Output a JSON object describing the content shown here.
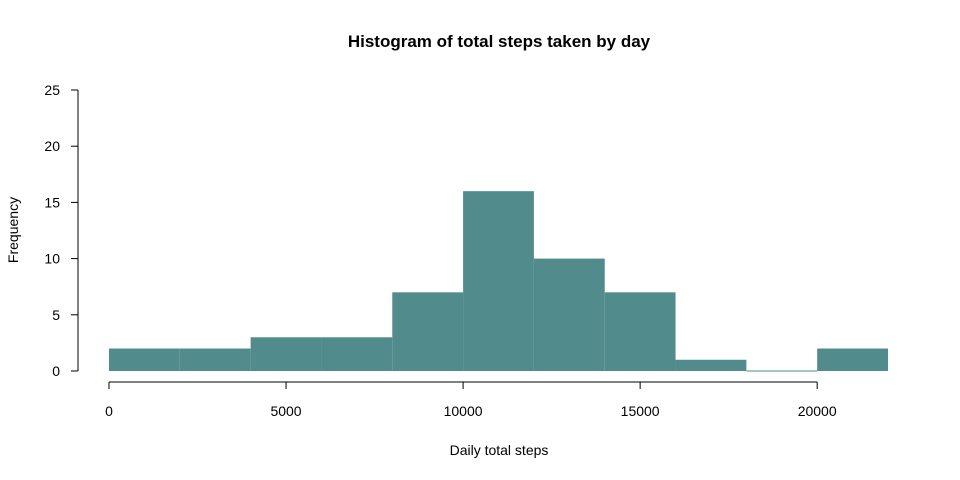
{
  "chart_data": {
    "type": "bar",
    "title": "Histogram of total steps taken by day",
    "xlabel": "Daily total steps",
    "ylabel": "Frequency",
    "bin_width": 2000,
    "bins": [
      {
        "start": 0,
        "end": 2000,
        "count": 2
      },
      {
        "start": 2000,
        "end": 4000,
        "count": 2
      },
      {
        "start": 4000,
        "end": 6000,
        "count": 3
      },
      {
        "start": 6000,
        "end": 8000,
        "count": 3
      },
      {
        "start": 8000,
        "end": 10000,
        "count": 7
      },
      {
        "start": 10000,
        "end": 12000,
        "count": 16
      },
      {
        "start": 12000,
        "end": 14000,
        "count": 10
      },
      {
        "start": 14000,
        "end": 16000,
        "count": 7
      },
      {
        "start": 16000,
        "end": 18000,
        "count": 1
      },
      {
        "start": 18000,
        "end": 20000,
        "count": 0
      },
      {
        "start": 20000,
        "end": 22000,
        "count": 2
      }
    ],
    "xticks": [
      "0",
      "5000",
      "10000",
      "15000",
      "20000"
    ],
    "yticks": [
      "0",
      "5",
      "10",
      "15",
      "20",
      "25"
    ],
    "xlim": [
      0,
      22000
    ],
    "ylim": [
      0,
      25
    ],
    "bar_color": "#528b8b",
    "grid": false,
    "legend": "none"
  }
}
